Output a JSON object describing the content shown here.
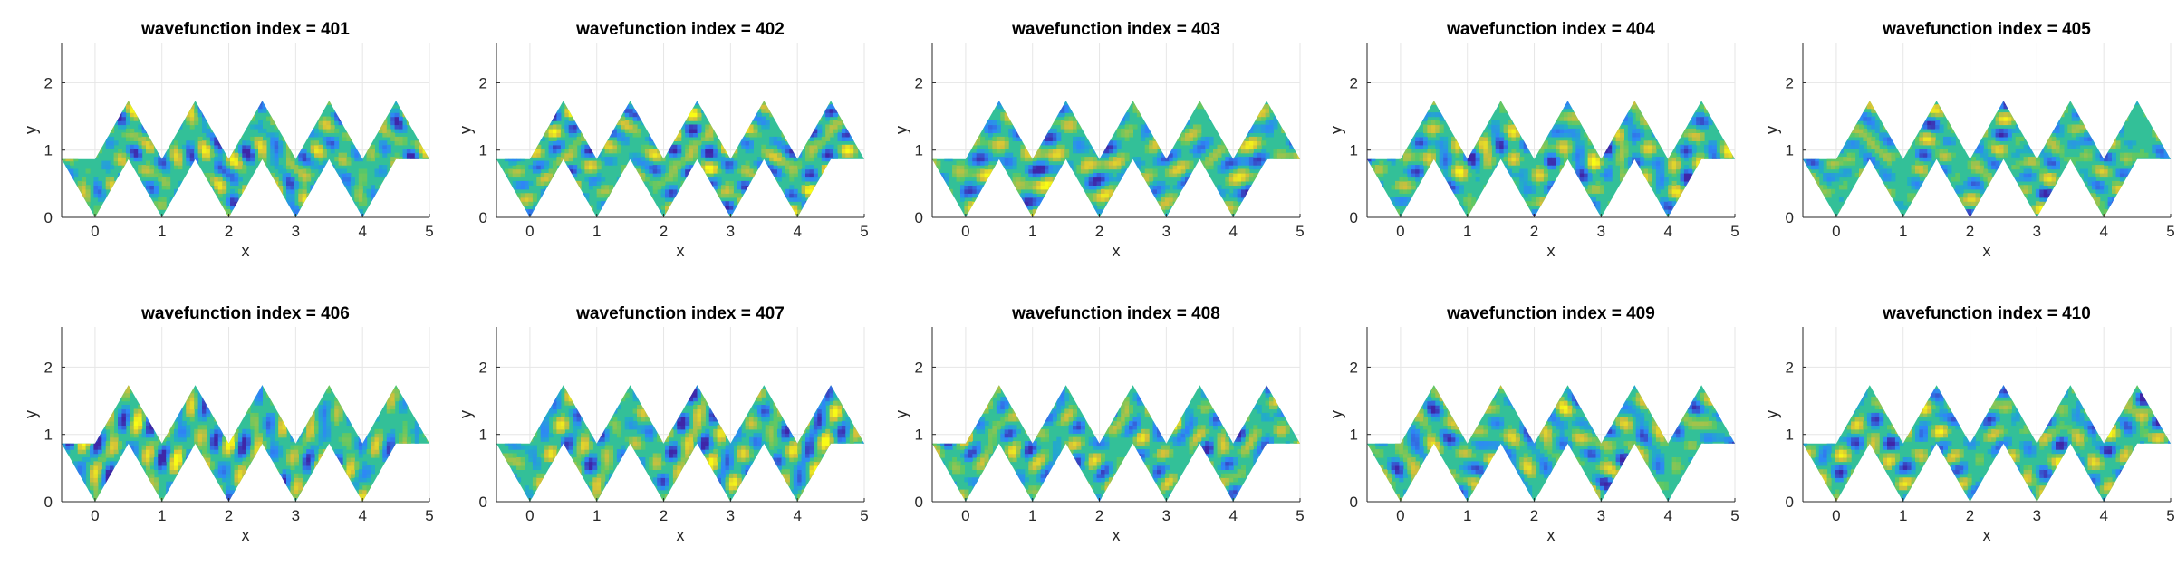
{
  "chart_data": [
    {
      "type": "heatmap",
      "title": "wavefunction index = 401",
      "xlabel": "x",
      "ylabel": "y",
      "xlim": [
        -0.5,
        5
      ],
      "ylim": [
        0,
        2.598
      ],
      "xticks": [
        "0",
        "1",
        "2",
        "3",
        "4",
        "5"
      ],
      "yticks": [
        "0",
        "1",
        "2"
      ],
      "grid": true,
      "colormap": "parula"
    },
    {
      "type": "heatmap",
      "title": "wavefunction index = 402",
      "xlabel": "x",
      "ylabel": "y",
      "xlim": [
        -0.5,
        5
      ],
      "ylim": [
        0,
        2.598
      ],
      "xticks": [
        "0",
        "1",
        "2",
        "3",
        "4",
        "5"
      ],
      "yticks": [
        "0",
        "1",
        "2"
      ],
      "grid": true,
      "colormap": "parula"
    },
    {
      "type": "heatmap",
      "title": "wavefunction index = 403",
      "xlabel": "x",
      "ylabel": "y",
      "xlim": [
        -0.5,
        5
      ],
      "ylim": [
        0,
        2.598
      ],
      "xticks": [
        "0",
        "1",
        "2",
        "3",
        "4",
        "5"
      ],
      "yticks": [
        "0",
        "1",
        "2"
      ],
      "grid": true,
      "colormap": "parula"
    },
    {
      "type": "heatmap",
      "title": "wavefunction index = 404",
      "xlabel": "x",
      "ylabel": "y",
      "xlim": [
        -0.5,
        5
      ],
      "ylim": [
        0,
        2.598
      ],
      "xticks": [
        "0",
        "1",
        "2",
        "3",
        "4",
        "5"
      ],
      "yticks": [
        "0",
        "1",
        "2"
      ],
      "grid": true,
      "colormap": "parula"
    },
    {
      "type": "heatmap",
      "title": "wavefunction index = 405",
      "xlabel": "x",
      "ylabel": "y",
      "xlim": [
        -0.5,
        5
      ],
      "ylim": [
        0,
        2.598
      ],
      "xticks": [
        "0",
        "1",
        "2",
        "3",
        "4",
        "5"
      ],
      "yticks": [
        "0",
        "1",
        "2"
      ],
      "grid": true,
      "colormap": "parula"
    },
    {
      "type": "heatmap",
      "title": "wavefunction index = 406",
      "xlabel": "x",
      "ylabel": "y",
      "xlim": [
        -0.5,
        5
      ],
      "ylim": [
        0,
        2.598
      ],
      "xticks": [
        "0",
        "1",
        "2",
        "3",
        "4",
        "5"
      ],
      "yticks": [
        "0",
        "1",
        "2"
      ],
      "grid": true,
      "colormap": "parula"
    },
    {
      "type": "heatmap",
      "title": "wavefunction index = 407",
      "xlabel": "x",
      "ylabel": "y",
      "xlim": [
        -0.5,
        5
      ],
      "ylim": [
        0,
        2.598
      ],
      "xticks": [
        "0",
        "1",
        "2",
        "3",
        "4",
        "5"
      ],
      "yticks": [
        "0",
        "1",
        "2"
      ],
      "grid": true,
      "colormap": "parula"
    },
    {
      "type": "heatmap",
      "title": "wavefunction index = 408",
      "xlabel": "x",
      "ylabel": "y",
      "xlim": [
        -0.5,
        5
      ],
      "ylim": [
        0,
        2.598
      ],
      "xticks": [
        "0",
        "1",
        "2",
        "3",
        "4",
        "5"
      ],
      "yticks": [
        "0",
        "1",
        "2"
      ],
      "grid": true,
      "colormap": "parula"
    },
    {
      "type": "heatmap",
      "title": "wavefunction index = 409",
      "xlabel": "x",
      "ylabel": "y",
      "xlim": [
        -0.5,
        5
      ],
      "ylim": [
        0,
        2.598
      ],
      "xticks": [
        "0",
        "1",
        "2",
        "3",
        "4",
        "5"
      ],
      "yticks": [
        "0",
        "1",
        "2"
      ],
      "grid": true,
      "colormap": "parula"
    },
    {
      "type": "heatmap",
      "title": "wavefunction index = 410",
      "xlabel": "x",
      "ylabel": "y",
      "xlim": [
        -0.5,
        5
      ],
      "ylim": [
        0,
        2.598
      ],
      "xticks": [
        "0",
        "1",
        "2",
        "3",
        "4",
        "5"
      ],
      "yticks": [
        "0",
        "1",
        "2"
      ],
      "grid": true,
      "colormap": "parula"
    }
  ],
  "colors": {
    "background": "#ffffff",
    "axis": "#262626",
    "grid": "#e6e6e6",
    "colormap_stops": [
      "#3e26a8",
      "#2e87f7",
      "#1ebcb3",
      "#5ac866",
      "#d3bf3a",
      "#f9fb15"
    ]
  }
}
